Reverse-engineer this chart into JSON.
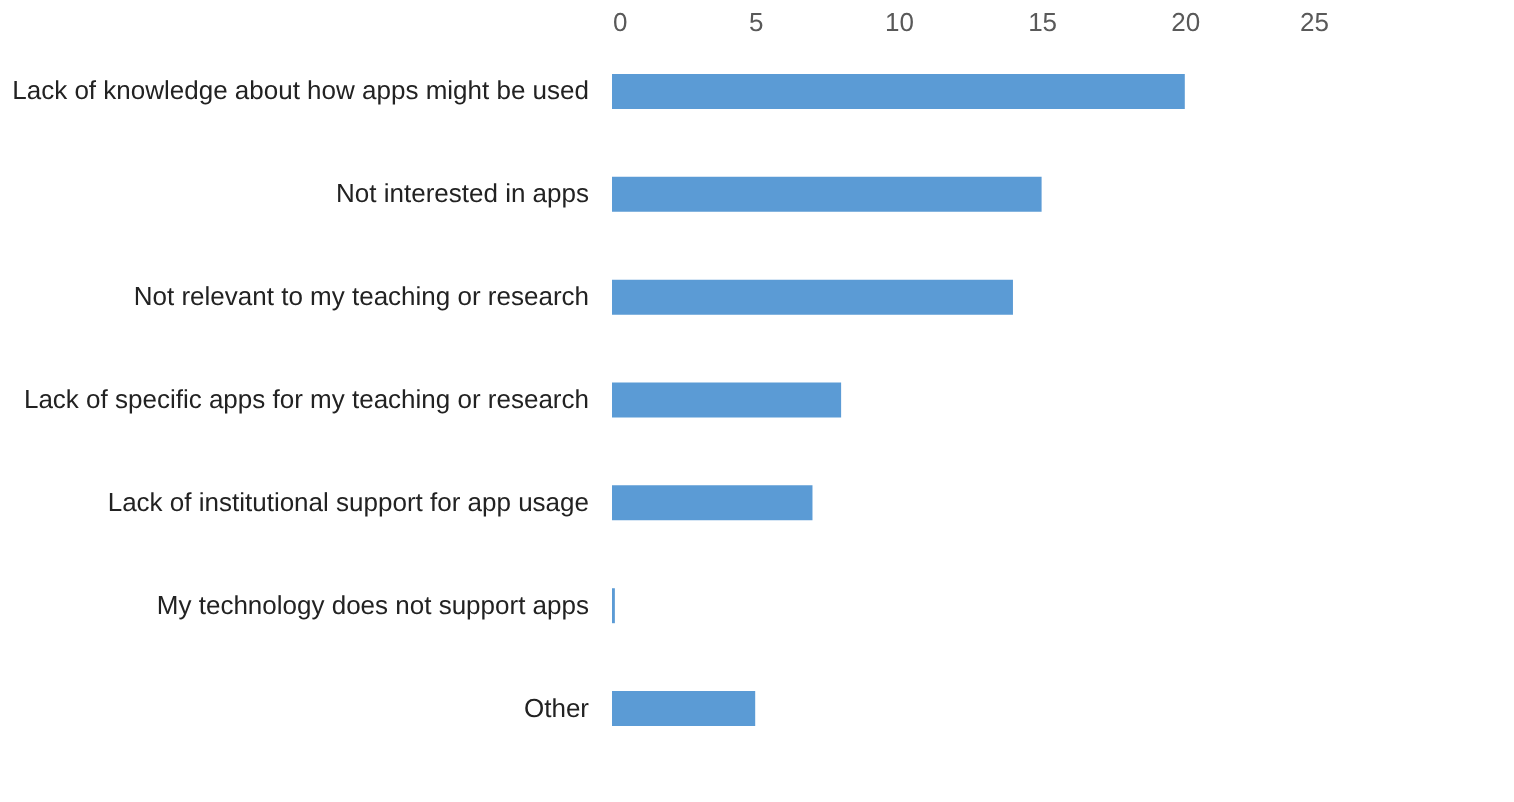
{
  "chart_data": {
    "type": "bar",
    "orientation": "horizontal",
    "categories": [
      "Lack of knowledge about how apps might be used",
      "Not interested in apps",
      "Not relevant to my teaching or research",
      "Lack of specific apps for my teaching or research",
      "Lack of institutional support for app usage",
      "My technology does not support apps",
      "Other"
    ],
    "values": [
      20,
      15,
      14,
      8,
      7,
      0.1,
      5
    ],
    "color": "#5b9bd5",
    "xlim": [
      0,
      25
    ],
    "xticks": [
      0,
      5,
      10,
      15,
      20,
      25
    ],
    "grid": false
  }
}
